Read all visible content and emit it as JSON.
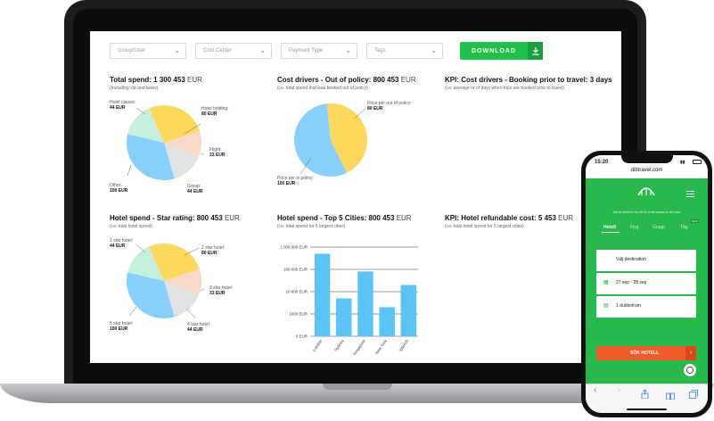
{
  "filters": [
    {
      "placeholder": "Group/User"
    },
    {
      "placeholder": "Cost Center"
    },
    {
      "placeholder": "Payment Type"
    },
    {
      "placeholder": "Tags"
    }
  ],
  "download_label": "DOWNLOAD",
  "cards": {
    "total_spend": {
      "title": "Total spend: 1 300 453",
      "unit": "EUR",
      "subtitle": "(Including vat and taxes)",
      "labels": {
        "hotel_classic": "Hotel classic:",
        "hotel_classic_v": "44 EUR",
        "hotel_bidding": "Hotel bidding:",
        "hotel_bidding_v": "80 EUR",
        "flight": "Flight:",
        "flight_v": "33 EUR",
        "group": "Group:",
        "group_v": "44 EUR",
        "other": "Other:",
        "other_v": "100 EUR"
      }
    },
    "cost_drivers": {
      "title": "Cost drivers - Out of policy: 800 453",
      "unit": "EUR",
      "subtitle": "(i.e. total spend that was booked out of policy)",
      "labels": {
        "price_out": "Price per out of policy:",
        "price_out_v": "80 EUR",
        "price_in": "Price per in policy:",
        "price_in_v": "100 EUR"
      }
    },
    "kpi_booking": {
      "title": "KPI: Cost drivers - Booking prior to travel: 3 days",
      "subtitle": "(i.e. average nr of days when trips are booked prior to travel)"
    },
    "hotel_star": {
      "title": "Hotel spend - Star rating: 800 453",
      "unit": "EUR",
      "subtitle": "(i.e. total hotel spend)",
      "labels": {
        "s1": "1 star hotel:",
        "s1_v": "44 EUR",
        "s2": "2 star hotel:",
        "s2_v": "80 EUR",
        "s3": "3 star hotel:",
        "s3_v": "33 EUR",
        "s4": "4 star hotel:",
        "s4_v": "44 EUR",
        "s5": "5 star hotel:",
        "s5_v": "100 EUR"
      }
    },
    "top_cities": {
      "title": "Hotel spend - Top 5 Cities: 800 453",
      "unit": "EUR",
      "subtitle": "(i.e. total spend for 5 largest cities)"
    },
    "kpi_refund": {
      "title": "KPI: Hotel refundable cost: 5 453",
      "unit": "EUR",
      "subtitle": "(i.e. total hotel spend for 5 largest cities)"
    }
  },
  "colors": {
    "yellow": "#fdd85d",
    "blue": "#86d0fa",
    "mint": "#c5f0dd",
    "peach": "#fad8c8",
    "grey": "#e2e2e2",
    "bar": "#5bc3f5",
    "green": "#21c04a",
    "orange": "#f15a2b"
  },
  "chart_data": [
    {
      "type": "pie",
      "title": "Total spend: 1 300 453 EUR",
      "labels": [
        "Hotel bidding",
        "Flight",
        "Group",
        "Other",
        "Hotel classic"
      ],
      "values": [
        80,
        33,
        44,
        100,
        44
      ]
    },
    {
      "type": "pie",
      "title": "Cost drivers - Out of policy: 800 453 EUR",
      "labels": [
        "Price per out of policy",
        "Price per in policy"
      ],
      "values": [
        80,
        100
      ]
    },
    {
      "type": "pie",
      "title": "Hotel spend - Star rating: 800 453 EUR",
      "labels": [
        "2 star hotel",
        "3 star hotel",
        "4 star hotel",
        "5 star hotel",
        "1 star hotel"
      ],
      "values": [
        80,
        33,
        44,
        100,
        44
      ]
    },
    {
      "type": "bar",
      "title": "Hotel spend - Top 5 Cities: 800 453 EUR",
      "categories": [
        "London",
        "Sydney",
        "Singapore",
        "New York",
        "Ipswich"
      ],
      "values": [
        500000,
        5000,
        80000,
        2000,
        20000
      ],
      "yscale": "log",
      "ylim": [
        0,
        1000000
      ],
      "ytick_labels": [
        "0 EUR",
        "1000 EUR",
        "10 000 EUR",
        "100 000 EUR",
        "1 000 000 EUR"
      ],
      "grid": true
    }
  ],
  "phone": {
    "time": "15:20",
    "url": "dibtravel.com",
    "logo": "dib",
    "tagline": "Allt du behöver för att få ut det mesta av din resa",
    "tabs": [
      "Hotell",
      "Flyg",
      "Grupp",
      "Tåg"
    ],
    "new_badge": "NEW",
    "destination": "Välj destination",
    "dates": "27 sep - 28 sep",
    "rooms": "1 dubbelrum",
    "search": "SÖK HOTELL"
  }
}
